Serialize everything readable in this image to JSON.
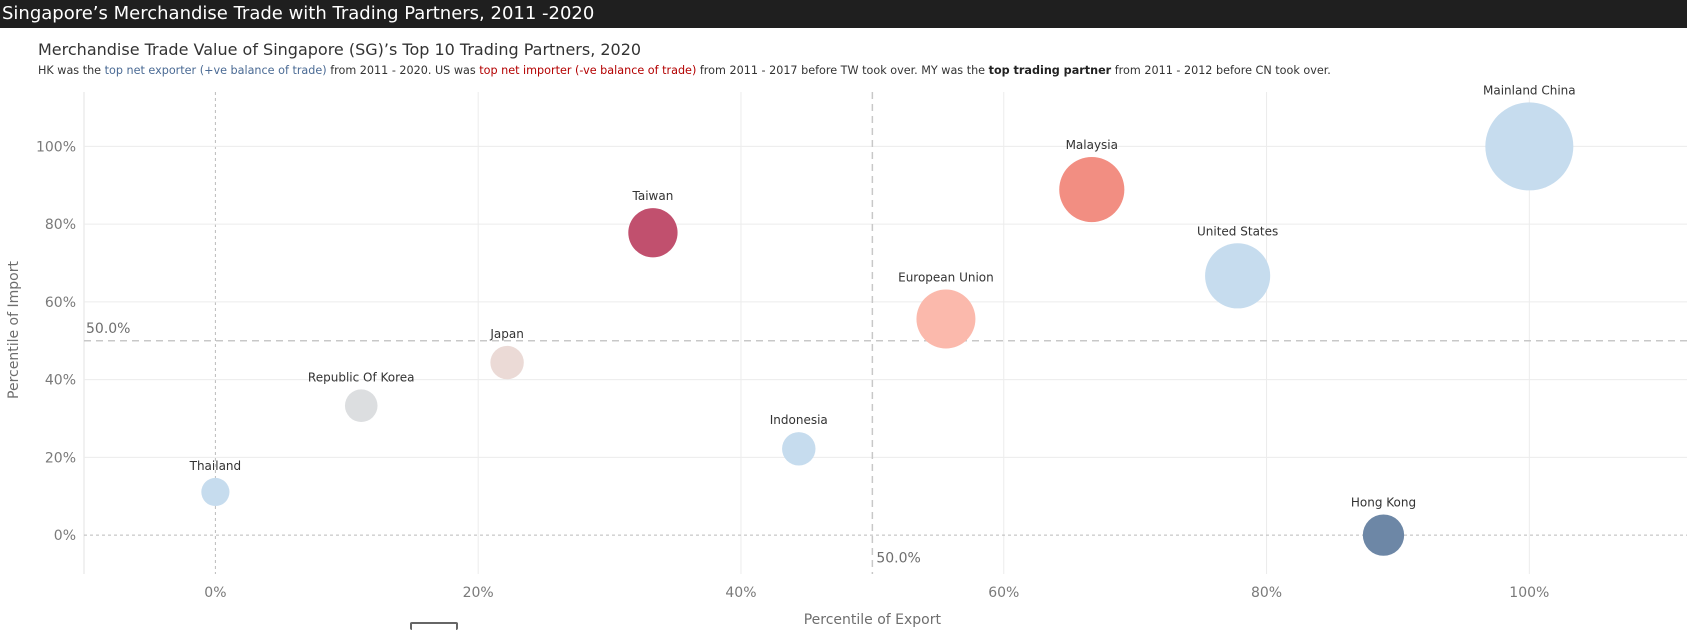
{
  "dashboard": {
    "title": "Singapore’s Merchandise Trade with Trading Partners, 2011 -2020"
  },
  "header": {
    "title": "Merchandise Trade Value of Singapore (SG)’s Top 10 Trading Partners, 2020",
    "subtitle": {
      "p1": "HK was the ",
      "h1": "top net exporter (+ve balance of trade)",
      "p2": " from 2011 - 2020. US was ",
      "h2": "top net importer (-ve balance of trade)",
      "p3": " from 2011 - 2017 before TW took over. MY was the ",
      "h3": "top trading partner",
      "p4": " from 2011 - 2012 before CN took over."
    }
  },
  "colors": {
    "top_bar": "#1f1f1f",
    "export_highlight": "#4a6a94",
    "import_highlight": "#b30000",
    "gridline": "#ececec",
    "reference_line": "#c8c8c8"
  },
  "chart_data": {
    "type": "scatter",
    "xlabel": "Percentile of Export",
    "ylabel": "Percentile of Import",
    "xlim": [
      -10,
      112
    ],
    "ylim": [
      -10,
      114
    ],
    "x_ticks": [
      "0%",
      "20%",
      "40%",
      "60%",
      "80%",
      "100%"
    ],
    "y_ticks": [
      "0%",
      "20%",
      "40%",
      "60%",
      "80%",
      "100%"
    ],
    "x_tick_values": [
      0,
      20,
      40,
      60,
      80,
      100
    ],
    "y_tick_values": [
      0,
      20,
      40,
      60,
      80,
      100
    ],
    "grid": true,
    "reference_lines": {
      "x": {
        "value": 50,
        "label": "50.0%"
      },
      "y": {
        "value": 50,
        "label": "50.0%"
      }
    },
    "points": [
      {
        "name": "Mainland China",
        "x": 100,
        "y": 100,
        "size": 1.0,
        "color": "#c6dcee"
      },
      {
        "name": "Malaysia",
        "x": 66.7,
        "y": 88.9,
        "size": 0.74,
        "color": "#f28e82"
      },
      {
        "name": "Taiwan",
        "x": 33.3,
        "y": 77.8,
        "size": 0.56,
        "color": "#c1506e"
      },
      {
        "name": "United States",
        "x": 77.8,
        "y": 66.7,
        "size": 0.74,
        "color": "#c6dcee"
      },
      {
        "name": "European Union",
        "x": 55.6,
        "y": 55.6,
        "size": 0.67,
        "color": "#fbb9ac"
      },
      {
        "name": "Japan",
        "x": 22.2,
        "y": 44.4,
        "size": 0.38,
        "color": "#ebdad6"
      },
      {
        "name": "Republic Of Korea",
        "x": 11.1,
        "y": 33.3,
        "size": 0.37,
        "color": "#dcdee0"
      },
      {
        "name": "Indonesia",
        "x": 44.4,
        "y": 22.2,
        "size": 0.38,
        "color": "#c6dcee"
      },
      {
        "name": "Thailand",
        "x": 0,
        "y": 11.1,
        "size": 0.32,
        "color": "#c6dcee"
      },
      {
        "name": "Hong Kong",
        "x": 88.9,
        "y": 0,
        "size": 0.47,
        "color": "#6d87a6"
      }
    ]
  }
}
